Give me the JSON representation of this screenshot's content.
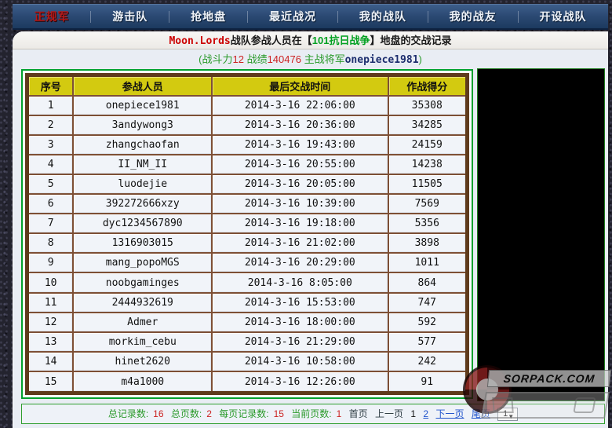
{
  "nav": {
    "items": [
      {
        "label": "正规军",
        "active": true
      },
      {
        "label": "游击队",
        "active": false
      },
      {
        "label": "抢地盘",
        "active": false
      },
      {
        "label": "最近战况",
        "active": false
      },
      {
        "label": "我的战队",
        "active": false
      },
      {
        "label": "我的战友",
        "active": false
      },
      {
        "label": "开设战队",
        "active": false
      }
    ]
  },
  "title": {
    "team": "Moon.Lords",
    "mid": "战队参战人员在【",
    "war": "101抗日战争",
    "tail": "】地盘的交战记录"
  },
  "stats": {
    "power_label": "(战斗力",
    "power": "12",
    "record_label": "战绩",
    "record": "140476",
    "general_label": "主战将军",
    "general": "onepiece1981",
    "close": ")"
  },
  "table": {
    "headers": [
      "序号",
      "参战人员",
      "最后交战时间",
      "作战得分"
    ],
    "rows": [
      {
        "no": "1",
        "player": "onepiece1981",
        "time": "2014-3-16 22:06:00",
        "score": "35308"
      },
      {
        "no": "2",
        "player": "3andywong3",
        "time": "2014-3-16 20:36:00",
        "score": "34285"
      },
      {
        "no": "3",
        "player": "zhangchaofan",
        "time": "2014-3-16 19:43:00",
        "score": "24159"
      },
      {
        "no": "4",
        "player": "II_NM_II",
        "time": "2014-3-16 20:55:00",
        "score": "14238"
      },
      {
        "no": "5",
        "player": "luodejie",
        "time": "2014-3-16 20:05:00",
        "score": "11505"
      },
      {
        "no": "6",
        "player": "392272666xzy",
        "time": "2014-3-16 10:39:00",
        "score": "7569"
      },
      {
        "no": "7",
        "player": "dyc1234567890",
        "time": "2014-3-16 19:18:00",
        "score": "5356"
      },
      {
        "no": "8",
        "player": "1316903015",
        "time": "2014-3-16 21:02:00",
        "score": "3898"
      },
      {
        "no": "9",
        "player": "mang_popoMGS",
        "time": "2014-3-16 20:29:00",
        "score": "1011"
      },
      {
        "no": "10",
        "player": "noobgaminges",
        "time": "2014-3-16 8:05:00",
        "score": "864"
      },
      {
        "no": "11",
        "player": "2444932619",
        "time": "2014-3-16 15:53:00",
        "score": "747"
      },
      {
        "no": "12",
        "player": "Admer",
        "time": "2014-3-16 18:00:00",
        "score": "592"
      },
      {
        "no": "13",
        "player": "morkim_cebu",
        "time": "2014-3-16 21:29:00",
        "score": "577"
      },
      {
        "no": "14",
        "player": "hinet2620",
        "time": "2014-3-16 10:58:00",
        "score": "242"
      },
      {
        "no": "15",
        "player": "m4a1000",
        "time": "2014-3-16 12:26:00",
        "score": "91"
      }
    ]
  },
  "pagination": {
    "total_records_label": "总记录数:",
    "total_records": "16",
    "total_pages_label": "总页数:",
    "total_pages": "2",
    "per_page_label": "每页记录数:",
    "per_page": "15",
    "current_page_label": "当前页数:",
    "current_page": "1",
    "first": "首页",
    "prev": "上一页",
    "page1": "1",
    "page2": "2",
    "next": "下一页",
    "last": "尾页",
    "select_value": "1"
  },
  "watermark": {
    "site": "SORPACK.COM"
  },
  "colors": {
    "nav_bg": "#2c4a74",
    "nav_active_text": "#b51a1a",
    "header_yellow": "#d3ca10",
    "table_border_brown": "#5f3b1c",
    "green_border": "#00a22e",
    "score_red": "#cc3333",
    "player_blue": "#3355aa",
    "label_green": "#2a9a2a",
    "value_red": "#cc2222"
  }
}
